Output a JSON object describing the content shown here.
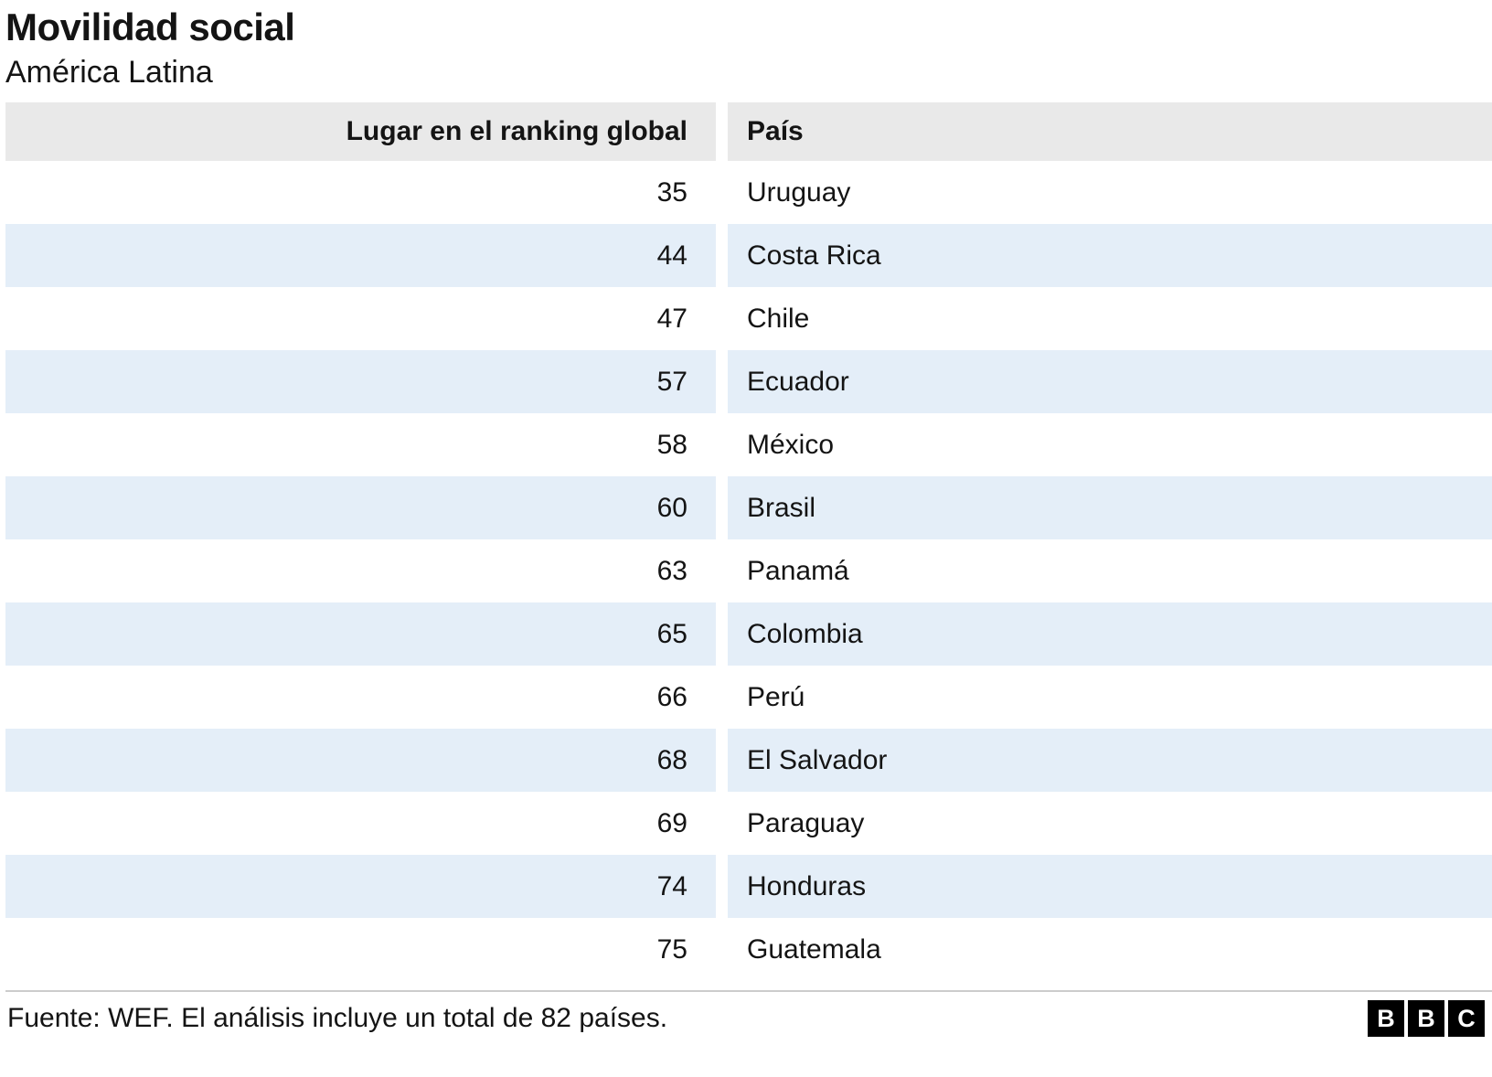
{
  "title": "Movilidad social",
  "subtitle": "América Latina",
  "table": {
    "columns": [
      "Lugar en el ranking global",
      "País"
    ],
    "rows": [
      {
        "rank": "35",
        "country": "Uruguay"
      },
      {
        "rank": "44",
        "country": "Costa Rica"
      },
      {
        "rank": "47",
        "country": "Chile"
      },
      {
        "rank": "57",
        "country": "Ecuador"
      },
      {
        "rank": "58",
        "country": "México"
      },
      {
        "rank": "60",
        "country": "Brasil"
      },
      {
        "rank": "63",
        "country": "Panamá"
      },
      {
        "rank": "65",
        "country": "Colombia"
      },
      {
        "rank": "66",
        "country": "Perú"
      },
      {
        "rank": "68",
        "country": "El Salvador"
      },
      {
        "rank": "69",
        "country": "Paraguay"
      },
      {
        "rank": "74",
        "country": "Honduras"
      },
      {
        "rank": "75",
        "country": "Guatemala"
      }
    ]
  },
  "footer": {
    "source": "Fuente: WEF. El análisis incluye un total de 82 países.",
    "logo_letters": [
      "B",
      "B",
      "C"
    ]
  },
  "colors": {
    "header_bg": "#e9e9e9",
    "stripe_bg": "#e4eef8",
    "row_bg": "#ffffff",
    "text": "#141414",
    "divider": "#cccccc",
    "logo_bg": "#000000",
    "logo_text": "#ffffff"
  },
  "chart_data": {
    "type": "table",
    "title": "Movilidad social",
    "subtitle": "América Latina",
    "columns": [
      "Lugar en el ranking global",
      "País"
    ],
    "rows": [
      [
        35,
        "Uruguay"
      ],
      [
        44,
        "Costa Rica"
      ],
      [
        47,
        "Chile"
      ],
      [
        57,
        "Ecuador"
      ],
      [
        58,
        "México"
      ],
      [
        60,
        "Brasil"
      ],
      [
        63,
        "Panamá"
      ],
      [
        65,
        "Colombia"
      ],
      [
        66,
        "Perú"
      ],
      [
        68,
        "El Salvador"
      ],
      [
        69,
        "Paraguay"
      ],
      [
        74,
        "Honduras"
      ],
      [
        75,
        "Guatemala"
      ]
    ],
    "source": "Fuente: WEF. El análisis incluye un total de 82 países."
  }
}
